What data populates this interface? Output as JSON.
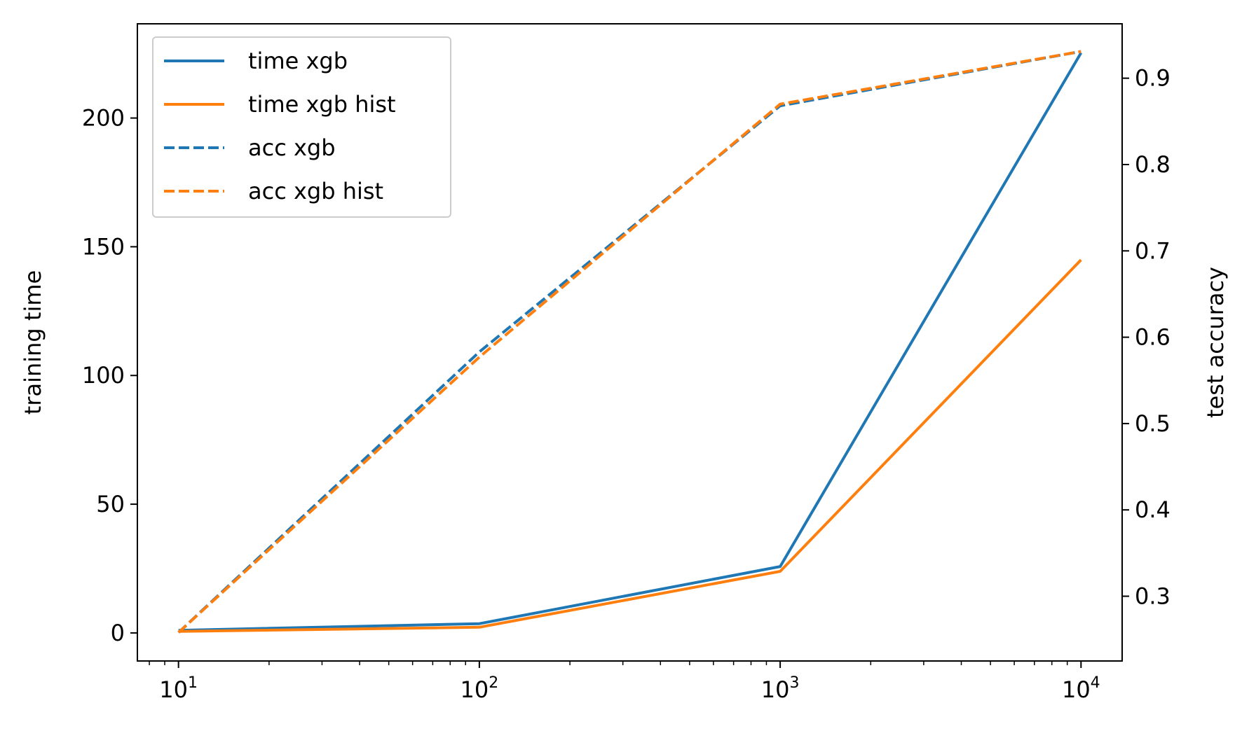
{
  "chart_data": {
    "type": "line",
    "xscale": "log",
    "x": [
      10,
      100,
      1000,
      10000
    ],
    "xlim": [
      7.3,
      13700
    ],
    "xticks": [
      10,
      100,
      1000,
      10000
    ],
    "xtick_labels": [
      {
        "base": "10",
        "exp": "1"
      },
      {
        "base": "10",
        "exp": "2"
      },
      {
        "base": "10",
        "exp": "3"
      },
      {
        "base": "10",
        "exp": "4"
      }
    ],
    "ylabel_left": "training time",
    "ylim_left": [
      -10.9,
      236.6
    ],
    "yticks_left": [
      0,
      50,
      100,
      150,
      200
    ],
    "ytick_labels_left": [
      "0",
      "50",
      "100",
      "150",
      "200"
    ],
    "ylabel_right": "test accuracy",
    "ylim_right": [
      0.225,
      0.963
    ],
    "yticks_right": [
      0.3,
      0.4,
      0.5,
      0.6,
      0.7,
      0.8,
      0.9
    ],
    "ytick_labels_right": [
      "0.3",
      "0.4",
      "0.5",
      "0.6",
      "0.7",
      "0.8",
      "0.9"
    ],
    "series": [
      {
        "name": "time xgb",
        "axis": "left",
        "style": "solid",
        "color": "#1f77b4",
        "values": [
          1.0,
          3.6,
          25.8,
          225.3
        ]
      },
      {
        "name": "time xgb hist",
        "axis": "left",
        "style": "solid",
        "color": "#ff7f0e",
        "values": [
          0.6,
          2.2,
          23.9,
          144.9
        ]
      },
      {
        "name": "acc xgb",
        "axis": "right",
        "style": "dashed",
        "color": "#1f77b4",
        "values": [
          0.258,
          0.583,
          0.868,
          0.931
        ]
      },
      {
        "name": "acc xgb hist",
        "axis": "right",
        "style": "dashed",
        "color": "#ff7f0e",
        "values": [
          0.258,
          0.577,
          0.87,
          0.931
        ]
      }
    ],
    "legend": {
      "position": "upper-left"
    },
    "grid": false
  }
}
